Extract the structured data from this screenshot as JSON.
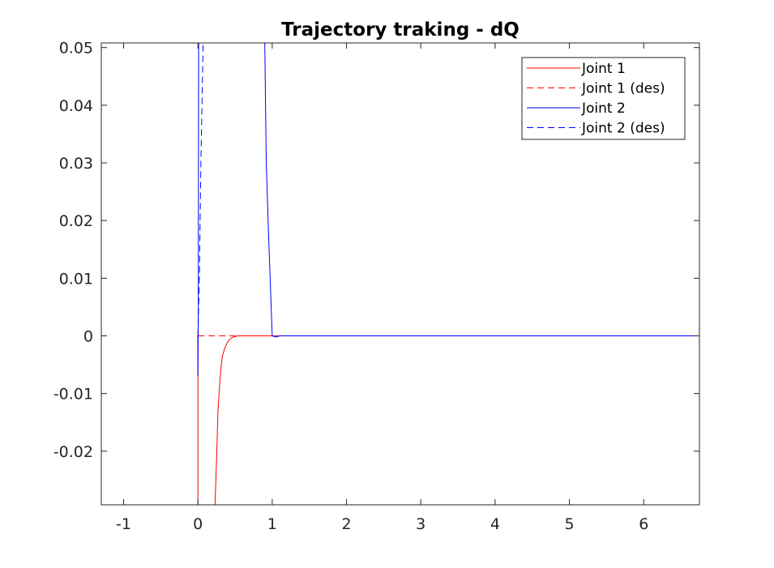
{
  "chart_data": {
    "type": "line",
    "title": "Trajectory traking - dQ",
    "xlabel": "",
    "ylabel": "",
    "xlim": [
      -1.3,
      6.75
    ],
    "ylim": [
      -0.0293,
      0.0508
    ],
    "xticks": [
      -1,
      0,
      1,
      2,
      3,
      4,
      5,
      6
    ],
    "xtick_labels": [
      "-1",
      "0",
      "1",
      "2",
      "3",
      "4",
      "5",
      "6"
    ],
    "yticks": [
      -0.02,
      -0.01,
      0,
      0.01,
      0.02,
      0.03,
      0.04,
      0.05
    ],
    "ytick_labels": [
      "-0.02",
      "-0.01",
      "0",
      "0.01",
      "0.02",
      "0.03",
      "0.04",
      "0.05"
    ],
    "grid": false,
    "legend_position": "top-right",
    "series": [
      {
        "name": "Joint 1",
        "color": "#ff0000",
        "style": "solid",
        "x": [
          0.0,
          0.0,
          0.0,
          0.23,
          0.25,
          0.27,
          0.29,
          0.31,
          0.33,
          0.36,
          0.39,
          0.42,
          0.46,
          0.5,
          0.55,
          0.6,
          0.7,
          0.8,
          1.0,
          2.0,
          4.0,
          6.75
        ],
        "y": [
          0.0,
          -0.007,
          -0.0293,
          -0.0293,
          -0.022,
          -0.013,
          -0.009,
          -0.0055,
          -0.0035,
          -0.0022,
          -0.0013,
          -0.0007,
          -0.0003,
          -0.0001,
          0.0,
          0.0,
          0.0,
          0.0,
          0.0,
          0.0,
          0.0,
          0.0
        ]
      },
      {
        "name": "Joint 1 (des)",
        "color": "#ff0000",
        "style": "dashed",
        "x": [
          0.0,
          1.0,
          6.75
        ],
        "y": [
          0.0,
          0.0,
          0.0
        ]
      },
      {
        "name": "Joint 2",
        "color": "#0000ff",
        "style": "solid",
        "x": [
          0.0,
          0.0,
          0.005,
          0.01,
          0.03,
          0.9,
          0.92,
          0.95,
          1.0,
          1.05,
          1.1,
          1.2,
          2.0,
          4.0,
          6.75
        ],
        "y": [
          0.0,
          -0.007,
          0.004,
          0.0508,
          0.0508,
          0.0508,
          0.03,
          0.018,
          0.0,
          -0.0002,
          0.0,
          0.0,
          0.0,
          0.0,
          0.0
        ]
      },
      {
        "name": "Joint 2 (des)",
        "color": "#0000ff",
        "style": "dashed",
        "x": [
          0.0,
          0.02,
          0.04,
          0.07,
          0.07
        ],
        "y": [
          0.0,
          0.01,
          0.03,
          0.0508,
          0.0508
        ]
      }
    ]
  }
}
